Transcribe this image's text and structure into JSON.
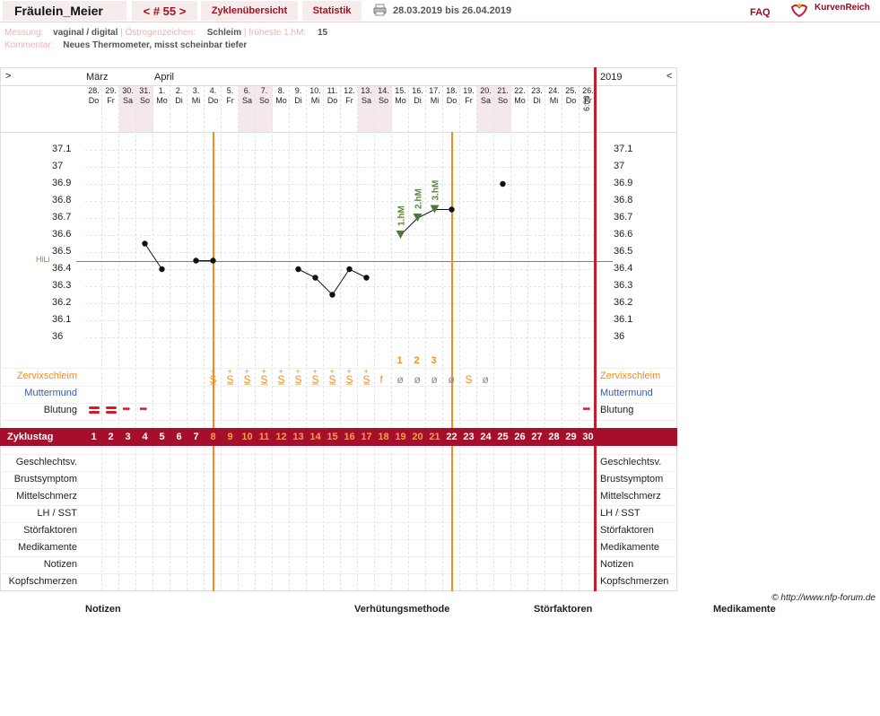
{
  "header": {
    "user": "Fräulein_Meier",
    "cycle_nav": "< # 55 >",
    "tab_overview": "Zyklenübersicht",
    "tab_stats": "Statistik",
    "date_range": "28.03.2019 bis 26.04.2019",
    "faq": "FAQ",
    "brand": "KurvenReich"
  },
  "info": {
    "messung_label": "Messung:",
    "messung_value": "vaginal / digital",
    "oestrogen_label": "Östrogenzeichen:",
    "oestrogen_value": "Schleim",
    "frueheste_label": "früheste 1.hM:",
    "frueheste_value": "15",
    "kommentar_label": "Kommentar:",
    "kommentar_value": "Neues Thermometer, misst scheinbar tiefer"
  },
  "grid": {
    "nav_left": ">",
    "nav_right": "<",
    "month_maerz": "März",
    "month_april": "April",
    "year": "2019",
    "time_label": "6:00",
    "hili_label": "HiLi"
  },
  "days": [
    {
      "d": "28.",
      "w": "Do",
      "we": false
    },
    {
      "d": "29.",
      "w": "Fr",
      "we": false
    },
    {
      "d": "30.",
      "w": "Sa",
      "we": true
    },
    {
      "d": "31.",
      "w": "So",
      "we": true
    },
    {
      "d": "1.",
      "w": "Mo",
      "we": false
    },
    {
      "d": "2.",
      "w": "Di",
      "we": false
    },
    {
      "d": "3.",
      "w": "Mi",
      "we": false
    },
    {
      "d": "4.",
      "w": "Do",
      "we": false
    },
    {
      "d": "5.",
      "w": "Fr",
      "we": false
    },
    {
      "d": "6.",
      "w": "Sa",
      "we": true
    },
    {
      "d": "7.",
      "w": "So",
      "we": true
    },
    {
      "d": "8.",
      "w": "Mo",
      "we": false
    },
    {
      "d": "9.",
      "w": "Di",
      "we": false
    },
    {
      "d": "10.",
      "w": "Mi",
      "we": false
    },
    {
      "d": "11.",
      "w": "Do",
      "we": false
    },
    {
      "d": "12.",
      "w": "Fr",
      "we": false
    },
    {
      "d": "13.",
      "w": "Sa",
      "we": true
    },
    {
      "d": "14.",
      "w": "So",
      "we": true
    },
    {
      "d": "15.",
      "w": "Mo",
      "we": false
    },
    {
      "d": "16.",
      "w": "Di",
      "we": false
    },
    {
      "d": "17.",
      "w": "Mi",
      "we": false
    },
    {
      "d": "18.",
      "w": "Do",
      "we": false
    },
    {
      "d": "19.",
      "w": "Fr",
      "we": false
    },
    {
      "d": "20.",
      "w": "Sa",
      "we": true
    },
    {
      "d": "21.",
      "w": "So",
      "we": true
    },
    {
      "d": "22.",
      "w": "Mo",
      "we": false
    },
    {
      "d": "23.",
      "w": "Di",
      "we": false
    },
    {
      "d": "24.",
      "w": "Mi",
      "we": false
    },
    {
      "d": "25.",
      "w": "Do",
      "we": false
    },
    {
      "d": "26.",
      "w": "Fr",
      "we": false
    }
  ],
  "chart_data": {
    "type": "line",
    "y_ticks": [
      "37.1",
      "37",
      "36.9",
      "36.8",
      "36.7",
      "36.6",
      "36.5",
      "36.4",
      "36.3",
      "36.2",
      "36.1",
      "36"
    ],
    "ylim": [
      36.0,
      37.1
    ],
    "hili": 36.45,
    "x_label": "Zyklustag",
    "points": [
      {
        "day": 4,
        "t": 36.55
      },
      {
        "day": 5,
        "t": 36.4
      },
      {
        "day": 7,
        "t": 36.45
      },
      {
        "day": 8,
        "t": 36.45
      },
      {
        "day": 13,
        "t": 36.4
      },
      {
        "day": 14,
        "t": 36.35
      },
      {
        "day": 15,
        "t": 36.25
      },
      {
        "day": 16,
        "t": 36.4
      },
      {
        "day": 17,
        "t": 36.35
      },
      {
        "day": 19,
        "t": 36.6
      },
      {
        "day": 20,
        "t": 36.7
      },
      {
        "day": 21,
        "t": 36.75
      },
      {
        "day": 22,
        "t": 36.75
      },
      {
        "day": 25,
        "t": 36.9
      }
    ],
    "line_segments": [
      [
        0,
        1
      ],
      [
        2,
        3
      ],
      [
        4,
        5,
        6,
        7,
        8
      ],
      [
        9,
        10,
        11,
        12
      ]
    ],
    "hm_markers": [
      {
        "day": 19,
        "label": "1.hM"
      },
      {
        "day": 20,
        "label": "2.hM"
      },
      {
        "day": 21,
        "label": "3.hM"
      }
    ],
    "count_labels": [
      {
        "day": 19,
        "n": "1"
      },
      {
        "day": 20,
        "n": "2"
      },
      {
        "day": 21,
        "n": "3"
      }
    ],
    "vertical_lines_day": [
      7.5,
      21.5
    ]
  },
  "rows": {
    "zervix": "Zervixschleim",
    "muttermund": "Muttermund",
    "blutung": "Blutung",
    "zyklustag": "Zyklustag",
    "geschlechtsv": "Geschlechtsv.",
    "brust": "Brustsymptom",
    "mittelschmerz": "Mittelschmerz",
    "lh": "LH / SST",
    "stoer": "Störfaktoren",
    "medi": "Medikamente",
    "notizen": "Notizen",
    "kopf": "Kopfschmerzen"
  },
  "zervix_symbols": [
    {
      "day": 8,
      "s": "S̲",
      "plus": true
    },
    {
      "day": 9,
      "s": "S̲",
      "plus": true
    },
    {
      "day": 10,
      "s": "S̲",
      "plus": true
    },
    {
      "day": 11,
      "s": "S̲",
      "plus": true
    },
    {
      "day": 12,
      "s": "S̲",
      "plus": true
    },
    {
      "day": 13,
      "s": "S̲",
      "plus": true
    },
    {
      "day": 14,
      "s": "S̲",
      "plus": true
    },
    {
      "day": 15,
      "s": "S̲",
      "plus": true
    },
    {
      "day": 16,
      "s": "S̲",
      "plus": true
    },
    {
      "day": 17,
      "s": "S̲",
      "plus": true
    },
    {
      "day": 18,
      "s": "f",
      "plus": false
    },
    {
      "day": 19,
      "s": "ø",
      "plus": false
    },
    {
      "day": 20,
      "s": "ø",
      "plus": false
    },
    {
      "day": 21,
      "s": "ø",
      "plus": false
    },
    {
      "day": 22,
      "s": "ø",
      "plus": false
    },
    {
      "day": 23,
      "s": "S",
      "plus": false
    },
    {
      "day": 24,
      "s": "ø",
      "plus": false
    }
  ],
  "blutung": [
    {
      "day": 1,
      "kind": "heavy"
    },
    {
      "day": 2,
      "kind": "heavy"
    },
    {
      "day": 3,
      "kind": "dots"
    },
    {
      "day": 4,
      "kind": "dots"
    },
    {
      "day": 30,
      "kind": "dots"
    }
  ],
  "cycle_days": [
    "1",
    "2",
    "3",
    "4",
    "5",
    "6",
    "7",
    "8",
    "9",
    "10",
    "11",
    "12",
    "13",
    "14",
    "15",
    "16",
    "17",
    "18",
    "19",
    "20",
    "21",
    "22",
    "23",
    "24",
    "25",
    "26",
    "27",
    "28",
    "29",
    "30"
  ],
  "copyright": "© http://www.nfp-forum.de",
  "footer": {
    "notizen": "Notizen",
    "verhuetung": "Verhütungsmethode",
    "stoer": "Störfaktoren",
    "medi": "Medikamente"
  },
  "colors": {
    "accent": "#a60f2c",
    "orange": "#f28c1c",
    "hili": "#6a9a3a",
    "muttermund": "#3b5bb0"
  }
}
